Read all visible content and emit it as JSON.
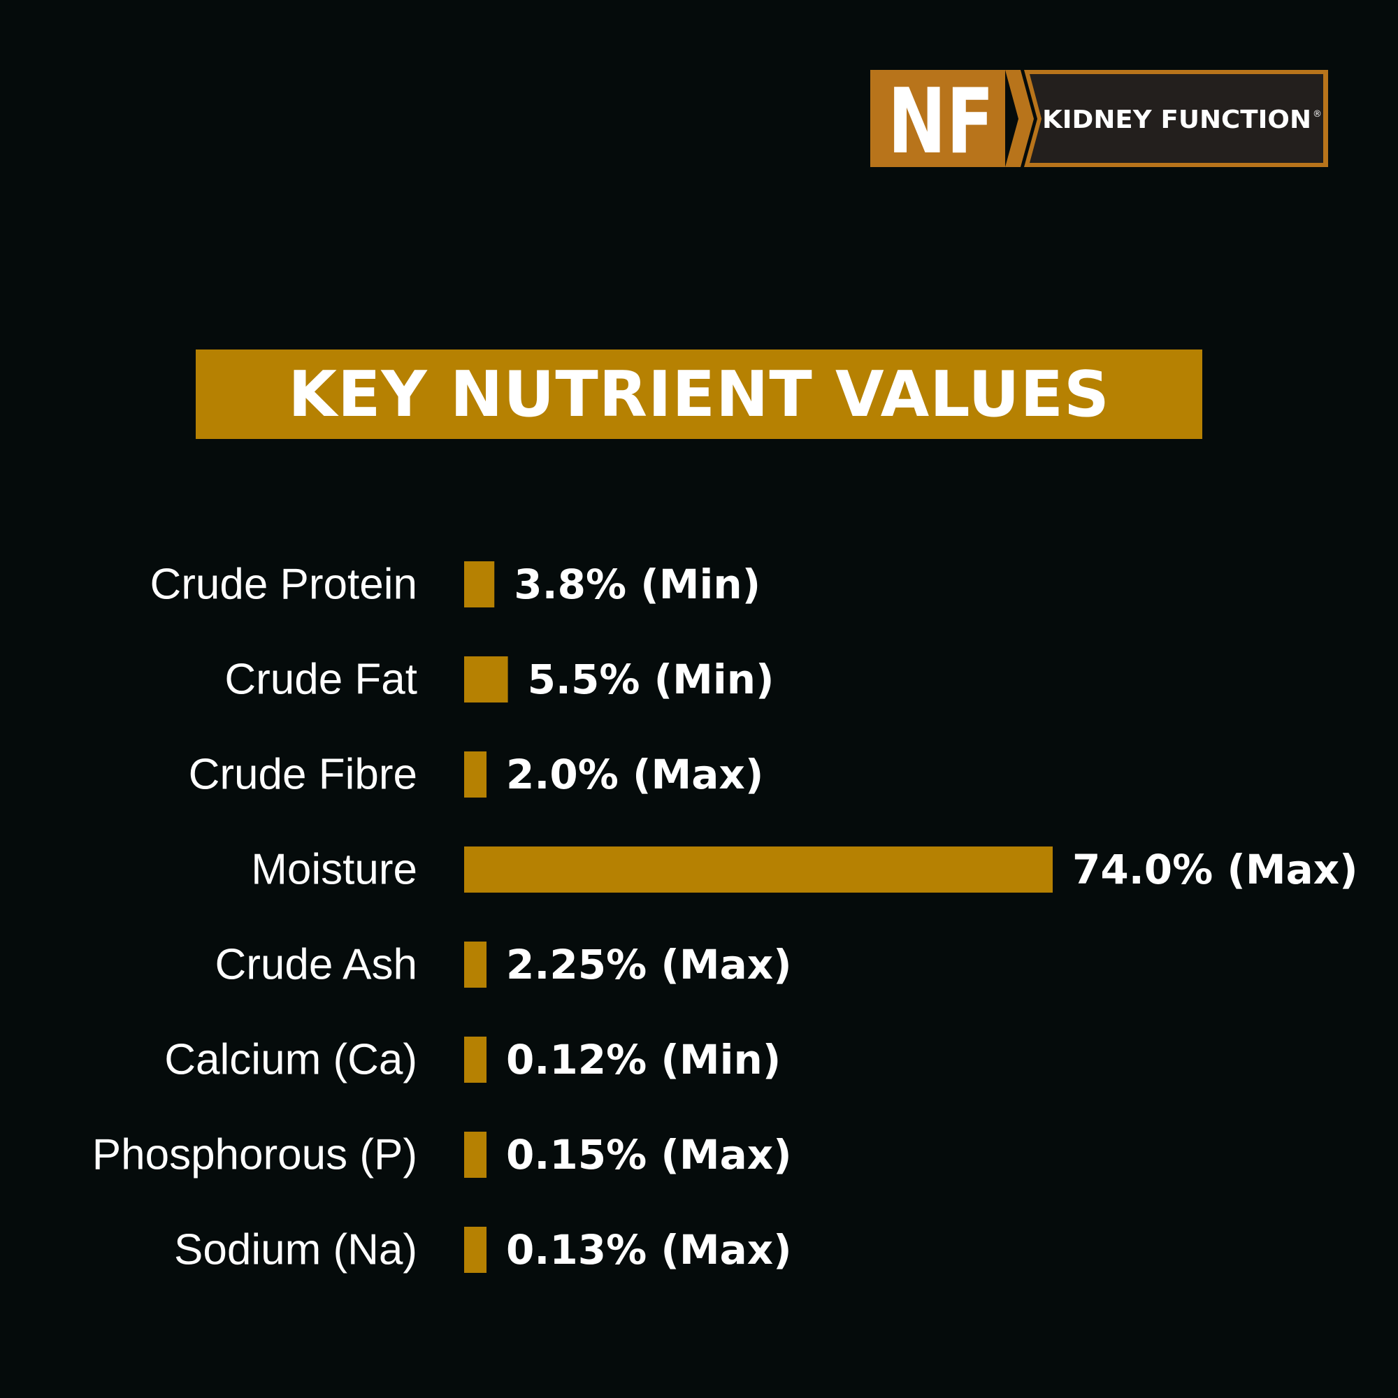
{
  "brand": {
    "badge": "NF",
    "name": "KIDNEY FUNCTION",
    "reg_mark": "®",
    "colors": {
      "badge_bg": "#b8741b",
      "panel_bg": "#231f1d",
      "accent": "#b68102"
    }
  },
  "chart_data": {
    "type": "bar",
    "orientation": "horizontal",
    "title": "KEY NUTRIENT VALUES",
    "categories": [
      "Crude Protein",
      "Crude Fat",
      "Crude Fibre",
      "Moisture",
      "Crude Ash",
      "Calcium (Ca)",
      "Phosphorous (P)",
      "Sodium (Na)"
    ],
    "values": [
      3.8,
      5.5,
      2.0,
      74.0,
      2.25,
      0.12,
      0.15,
      0.13
    ],
    "data_labels": [
      "3.8% (Min)",
      "5.5% (Min)",
      "2.0% (Max)",
      "74.0% (Max)",
      "2.25% (Max)",
      "0.12% (Min)",
      "0.15% (Max)",
      "0.13% (Max)"
    ],
    "xlabel": "",
    "ylabel": "",
    "grid": false,
    "legend": "none",
    "bar_color": "#b68102",
    "text_color": "#ffffff"
  }
}
